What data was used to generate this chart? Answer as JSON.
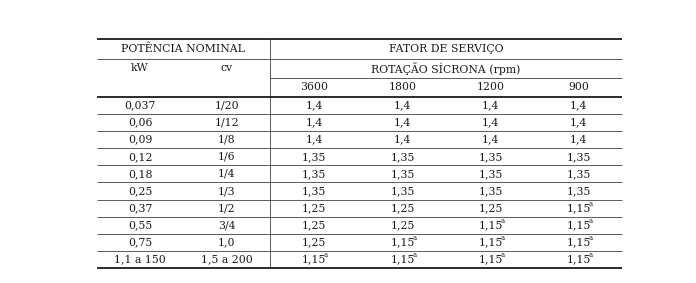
{
  "header1_left": "POTÊNCIA NOMINAL",
  "header1_right": "FATOR DE SERVIÇO",
  "header2_kw": "kW",
  "header2_cv": "cv",
  "header2_rot": "ROTAÇÃO SÍCRONA (rpm)",
  "header3": [
    "3600",
    "1800",
    "1200",
    "900"
  ],
  "rows": [
    [
      "0,037",
      "1/20",
      "1,4",
      "1,4",
      "1,4",
      "1,4"
    ],
    [
      "0,06",
      "1/12",
      "1,4",
      "1,4",
      "1,4",
      "1,4"
    ],
    [
      "0,09",
      "1/8",
      "1,4",
      "1,4",
      "1,4",
      "1,4"
    ],
    [
      "0,12",
      "1/6",
      "1,35",
      "1,35",
      "1,35",
      "1,35"
    ],
    [
      "0,18",
      "1/4",
      "1,35",
      "1,35",
      "1,35",
      "1,35"
    ],
    [
      "0,25",
      "1/3",
      "1,35",
      "1,35",
      "1,35",
      "1,35"
    ],
    [
      "0,37",
      "1/2",
      "1,25",
      "1,25",
      "1,25",
      "1,15a"
    ],
    [
      "0,55",
      "3/4",
      "1,25",
      "1,25",
      "1,15a",
      "1,15a"
    ],
    [
      "0,75",
      "1,0",
      "1,25",
      "1,15a",
      "1,15a",
      "1,15a"
    ],
    [
      "1,1 a 150",
      "1,5 a 200",
      "1,15a",
      "1,15a",
      "1,15a",
      "1,15a"
    ]
  ],
  "bg_color": "#ffffff",
  "text_color": "#1a1a1a",
  "line_color": "#1a1a1a",
  "fontsize": 7.8,
  "fontfamily": "serif"
}
